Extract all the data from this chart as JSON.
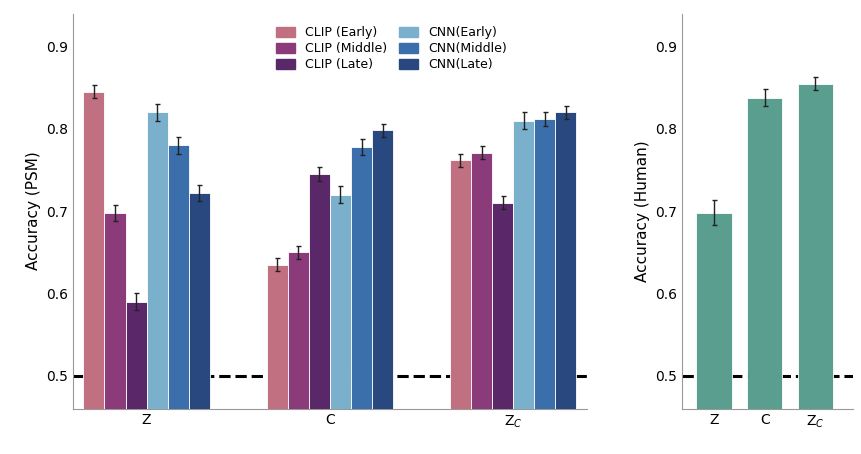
{
  "left_chart": {
    "ylabel": "Accuracy (PSM)",
    "groups": [
      "Z",
      "C",
      "Z$_C$"
    ],
    "series": [
      {
        "label": "CLIP (Early)",
        "color": "#c07080",
        "values": [
          0.845,
          0.635,
          0.762
        ],
        "errors": [
          0.008,
          0.008,
          0.008
        ]
      },
      {
        "label": "CLIP (Middle)",
        "color": "#8b3a7a",
        "values": [
          0.698,
          0.65,
          0.771
        ],
        "errors": [
          0.01,
          0.008,
          0.008
        ]
      },
      {
        "label": "CLIP (Late)",
        "color": "#5a2868",
        "values": [
          0.59,
          0.745,
          0.71
        ],
        "errors": [
          0.01,
          0.008,
          0.008
        ]
      },
      {
        "label": "CNN(Early)",
        "color": "#7ab0cc",
        "values": [
          0.82,
          0.72,
          0.81
        ],
        "errors": [
          0.01,
          0.01,
          0.01
        ]
      },
      {
        "label": "CNN(Middle)",
        "color": "#3a6fac",
        "values": [
          0.78,
          0.778,
          0.812
        ],
        "errors": [
          0.01,
          0.01,
          0.008
        ]
      },
      {
        "label": "CNN(Late)",
        "color": "#2a4880",
        "values": [
          0.722,
          0.798,
          0.82
        ],
        "errors": [
          0.01,
          0.008,
          0.008
        ]
      }
    ],
    "ylim": [
      0.46,
      0.94
    ],
    "yticks": [
      0.5,
      0.6,
      0.7,
      0.8,
      0.9
    ],
    "chance_line": 0.5,
    "bar_width": 0.115,
    "group_centers": [
      0.3,
      1.3,
      2.3
    ]
  },
  "right_chart": {
    "ylabel": "Accuracy (Human)",
    "categories": [
      "Z",
      "C",
      "Z$_C$"
    ],
    "values": [
      0.698,
      0.838,
      0.855
    ],
    "errors": [
      0.015,
      0.01,
      0.008
    ],
    "color": "#5a9e8f",
    "ylim": [
      0.46,
      0.94
    ],
    "yticks": [
      0.5,
      0.6,
      0.7,
      0.8,
      0.9
    ],
    "chance_line": 0.5,
    "bar_width": 0.28,
    "x_positions": [
      0.2,
      0.6,
      1.0
    ]
  },
  "bg_color": "#ffffff",
  "legend": {
    "fontsize": 9,
    "ncol": 2,
    "handlelength": 1.5,
    "handleheight": 0.9,
    "columnspacing": 1.0,
    "labelspacing": 0.25,
    "borderpad": 0.5
  }
}
